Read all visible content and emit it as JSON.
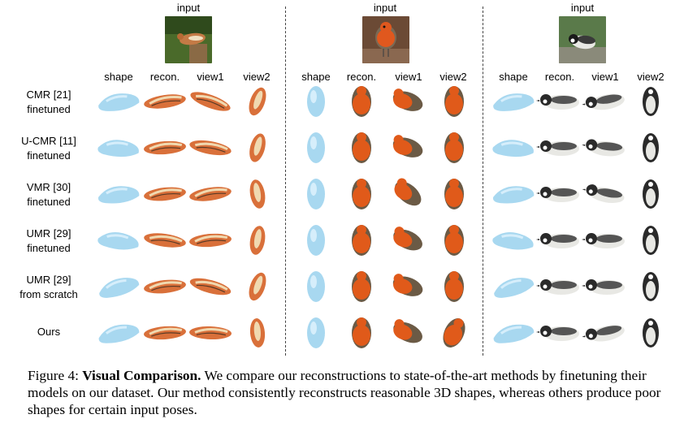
{
  "figure": {
    "inputs": [
      {
        "label": "input",
        "icon": "brown-bird-on-stump-photo"
      },
      {
        "label": "input",
        "icon": "robin-photo"
      },
      {
        "label": "input",
        "icon": "black-white-bird-photo"
      }
    ],
    "column_headers": [
      "shape",
      "recon.",
      "view1",
      "view2"
    ],
    "rows": [
      {
        "line1": "CMR [21]",
        "line2": "finetuned"
      },
      {
        "line1": "U-CMR [11]",
        "line2": "finetuned"
      },
      {
        "line1": "VMR [30]",
        "line2": "finetuned"
      },
      {
        "line1": "UMR [29]",
        "line2": "finetuned"
      },
      {
        "line1": "UMR [29]",
        "line2": "from scratch"
      },
      {
        "line1": "Ours",
        "line2": ""
      }
    ],
    "colors": {
      "shape": "#a8d8f0",
      "bird1_body": "#d9703a",
      "bird1_wing": "#f0d9b0",
      "bird2_breast": "#e05a1a",
      "bird2_back": "#6b5a45",
      "bird3_body": "#2a2a2a",
      "bird3_belly": "#e8e8e4"
    }
  },
  "caption": {
    "label": "Figure 4:",
    "title": "Visual Comparison.",
    "text": "We compare our reconstructions to state-of-the-art methods by finetuning their models on our dataset. Our method consistently reconstructs reasonable 3D shapes, whereas others produce poor shapes for certain input poses."
  }
}
